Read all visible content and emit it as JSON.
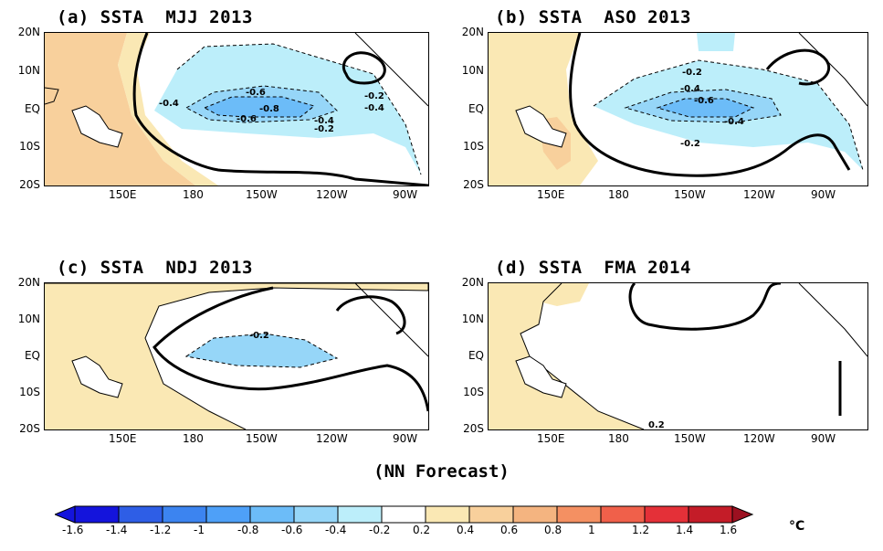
{
  "panels": [
    {
      "title": "(a) SSTA  MJJ 2013",
      "labels": [
        "-0.4",
        "-0.6",
        "-0.8",
        "-0.6",
        "-0.2",
        "-0.4",
        "-0.4",
        "-0.2"
      ]
    },
    {
      "title": "(b) SSTA  ASO 2013",
      "labels": [
        "-0.2",
        "-0.4",
        "-0.6",
        "-0.4",
        "-0.2"
      ]
    },
    {
      "title": "(c) SSTA  NDJ 2013",
      "labels": [
        "-0.2"
      ]
    },
    {
      "title": "(d) SSTA  FMA 2014",
      "labels": [
        "0.2"
      ]
    }
  ],
  "lat_labels": [
    "20N",
    "10N",
    "EQ",
    "10S",
    "20S"
  ],
  "lon_labels": [
    "150E",
    "180",
    "150W",
    "120W",
    "90W"
  ],
  "footer": "(NN Forecast)",
  "colorbar": {
    "ticks": [
      "-1.6",
      "-1.4",
      "-1.2",
      "-1",
      "-0.8",
      "-0.6",
      "-0.4",
      "-0.2",
      "0.2",
      "0.4",
      "0.6",
      "0.8",
      "1",
      "1.2",
      "1.4",
      "1.6"
    ],
    "unit": "°C",
    "colors": [
      "#1414dc",
      "#2e5ee6",
      "#3c84f0",
      "#4ea0f8",
      "#6cbcf8",
      "#96d6f8",
      "#bceefa",
      "#ffffff",
      "#fae8b4",
      "#f8d09c",
      "#f4b480",
      "#f49062",
      "#f0604a",
      "#e43038",
      "#c41c28"
    ]
  }
}
